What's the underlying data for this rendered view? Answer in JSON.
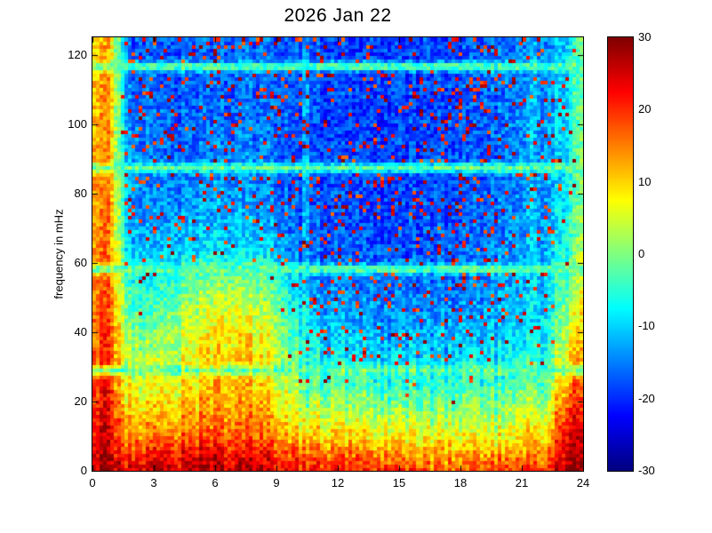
{
  "figure": {
    "background": "#ffffff"
  },
  "chart_data": {
    "type": "heatmap",
    "title": "2026 Jan 22",
    "xlabel": "",
    "ylabel": "frequency in mHz",
    "xlim": [
      0,
      24
    ],
    "ylim": [
      0,
      125
    ],
    "x_ticks": [
      0,
      3,
      6,
      9,
      12,
      15,
      18,
      21,
      24
    ],
    "y_ticks": [
      0,
      20,
      40,
      60,
      80,
      100,
      120
    ],
    "colormap": "jet",
    "grid": false,
    "legend_position": "colorbar-right",
    "colorbar": {
      "min": -30,
      "max": 30,
      "ticks_top_to_bottom": [
        30,
        20,
        10,
        0,
        -10,
        -20,
        -30
      ]
    },
    "band_lines_mhz": [
      29.2,
      58.4,
      87.6,
      116.8
    ],
    "vertical_light_lines_hours": [
      10.45,
      21.5
    ],
    "values_db": {
      "time_points_hours": [
        0,
        0.8,
        1.8,
        3,
        5,
        7,
        9,
        10.5,
        12,
        14,
        16,
        18,
        20,
        22,
        23.2,
        24
      ],
      "freq_points_mhz": [
        0,
        4,
        10,
        18,
        26,
        35,
        45,
        55,
        65,
        80,
        95,
        110,
        125
      ],
      "grid": [
        [
          26,
          28,
          24,
          25,
          26,
          27,
          24,
          22,
          22,
          20,
          18,
          17,
          18,
          20,
          28,
          29
        ],
        [
          24,
          27,
          20,
          22,
          24,
          25,
          22,
          18,
          18,
          16,
          14,
          13,
          14,
          16,
          26,
          28
        ],
        [
          22,
          25,
          14,
          15,
          17,
          18,
          15,
          10,
          10,
          8,
          7,
          6,
          7,
          10,
          24,
          26
        ],
        [
          20,
          23,
          9,
          9,
          12,
          14,
          10,
          4,
          3,
          1,
          0,
          0,
          1,
          4,
          18,
          22
        ],
        [
          18,
          21,
          5,
          5,
          9,
          12,
          7,
          -2,
          -4,
          -6,
          -6,
          -6,
          -5,
          -2,
          12,
          18
        ],
        [
          17,
          20,
          2,
          1,
          7,
          11,
          5,
          -7,
          -9,
          -11,
          -11,
          -11,
          -9,
          -6,
          6,
          14
        ],
        [
          16,
          18,
          -2,
          -3,
          4,
          8,
          2,
          -11,
          -13,
          -14,
          -14,
          -14,
          -12,
          -9,
          2,
          10
        ],
        [
          15,
          17,
          -6,
          -7,
          -2,
          1,
          -4,
          -14,
          -15,
          -16,
          -16,
          -16,
          -14,
          -11,
          -2,
          7
        ],
        [
          14,
          16,
          -11,
          -12,
          -10,
          -9,
          -12,
          -17,
          -17,
          -18,
          -18,
          -17,
          -15,
          -12,
          -6,
          4
        ],
        [
          13,
          15,
          -14,
          -15,
          -14,
          -13,
          -15,
          -18,
          -18,
          -19,
          -18,
          -18,
          -16,
          -13,
          -8,
          2
        ],
        [
          12,
          14,
          -15,
          -16,
          -16,
          -15,
          -16,
          -18,
          -19,
          -19,
          -19,
          -18,
          -16,
          -13,
          -9,
          1
        ],
        [
          11,
          13,
          -16,
          -17,
          -17,
          -16,
          -16,
          -18,
          -19,
          -19,
          -19,
          -18,
          -16,
          -13,
          -9,
          0
        ],
        [
          10,
          12,
          -17,
          -18,
          -17,
          -16,
          -17,
          -18,
          -19,
          -19,
          -19,
          -18,
          -17,
          -14,
          -10,
          0
        ]
      ]
    }
  }
}
